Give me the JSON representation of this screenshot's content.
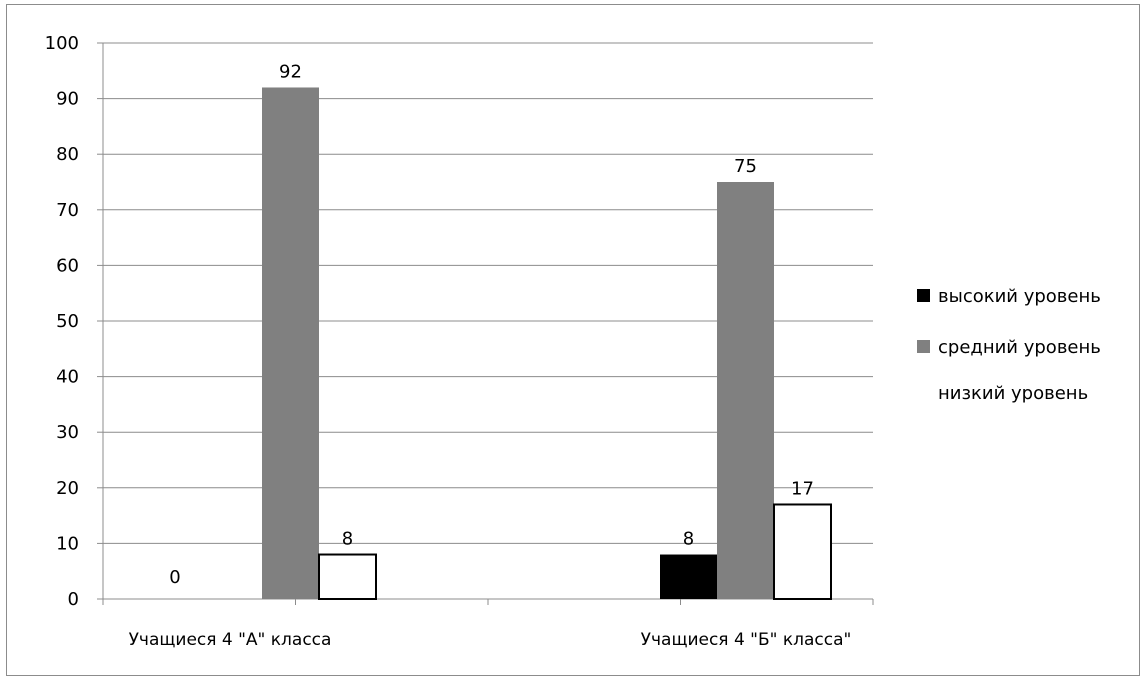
{
  "chart_data": {
    "type": "bar",
    "categories": [
      "Учащиеся 4 \"А\" класса",
      "Учащиеся 4 \"Б\" класса\""
    ],
    "series": [
      {
        "name": "высокий уровень",
        "values": [
          0,
          8
        ],
        "color": "#000000"
      },
      {
        "name": "средний уровень",
        "values": [
          92,
          75
        ],
        "color": "#808080"
      },
      {
        "name": "низкий уровень",
        "values": [
          8,
          17
        ],
        "color": "#ffffff"
      }
    ],
    "ylim": [
      0,
      100
    ],
    "yticks": [
      0,
      10,
      20,
      30,
      40,
      50,
      60,
      70,
      80,
      90,
      100
    ],
    "grid": true,
    "legend_position": "right",
    "data_labels": true
  }
}
